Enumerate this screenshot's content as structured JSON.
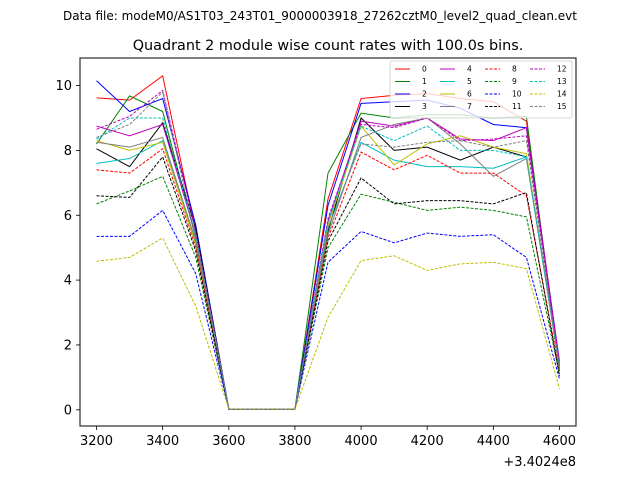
{
  "header": "Data file: modeM0/AS1T03_243T01_9000003918_27262cztM0_level2_quad_clean.evt",
  "chart_data": {
    "type": "line",
    "title": "Quadrant 2 module wise count rates with 100.0s bins.",
    "xlabel": "",
    "ylabel": "",
    "x_offset_label": "+3.4024e8",
    "x": [
      3200,
      3300,
      3400,
      3500,
      3600,
      3700,
      3800,
      3900,
      4000,
      4100,
      4200,
      4300,
      4400,
      4500,
      4600
    ],
    "xlim": [
      3150,
      4650
    ],
    "ylim": [
      -0.5,
      10.85
    ],
    "xticks": [
      3200,
      3400,
      3600,
      3800,
      4000,
      4200,
      4400,
      4600
    ],
    "xtick_labels": [
      "3200",
      "3400",
      "3600",
      "3800",
      "4000",
      "4200",
      "4400",
      "4600"
    ],
    "yticks": [
      0,
      2,
      4,
      6,
      8,
      10
    ],
    "ytick_labels": [
      "0",
      "2",
      "4",
      "6",
      "8",
      "10"
    ],
    "grid": false,
    "legend_position": "top-right",
    "series": [
      {
        "name": "0",
        "color": "#ff0000",
        "dash": "solid",
        "values": [
          9.62,
          9.55,
          10.3,
          5.5,
          0.02,
          0.02,
          0.02,
          6.5,
          9.6,
          9.7,
          9.75,
          9.6,
          9.5,
          8.9,
          1.4
        ]
      },
      {
        "name": "1",
        "color": "#008000",
        "dash": "solid",
        "values": [
          8.2,
          9.68,
          9.2,
          5.3,
          0.02,
          0.02,
          0.02,
          7.3,
          9.15,
          9.0,
          9.1,
          9.1,
          9.0,
          9.05,
          1.2
        ]
      },
      {
        "name": "2",
        "color": "#0000ff",
        "dash": "solid",
        "values": [
          10.15,
          9.2,
          9.6,
          5.7,
          0.02,
          0.02,
          0.02,
          6.3,
          9.45,
          9.5,
          9.55,
          9.3,
          8.8,
          8.7,
          1.5
        ]
      },
      {
        "name": "3",
        "color": "#000000",
        "dash": "solid",
        "values": [
          8.05,
          7.5,
          8.85,
          5.6,
          0.02,
          0.02,
          0.02,
          5.5,
          9.0,
          8.0,
          8.1,
          7.7,
          8.1,
          7.8,
          1.3
        ]
      },
      {
        "name": "4",
        "color": "#bf00bf",
        "dash": "solid",
        "values": [
          8.75,
          8.45,
          8.8,
          5.4,
          0.02,
          0.02,
          0.02,
          5.8,
          8.9,
          8.75,
          9.0,
          8.35,
          8.3,
          8.7,
          1.45
        ]
      },
      {
        "name": "5",
        "color": "#00bfbf",
        "dash": "solid",
        "values": [
          7.6,
          7.75,
          8.3,
          5.2,
          0.02,
          0.02,
          0.02,
          5.6,
          8.25,
          7.7,
          7.5,
          7.5,
          7.45,
          7.8,
          1.35
        ]
      },
      {
        "name": "6",
        "color": "#bfbf00",
        "dash": "solid",
        "values": [
          8.3,
          8.0,
          8.25,
          5.1,
          0.02,
          0.02,
          0.02,
          5.7,
          8.75,
          7.55,
          8.2,
          8.45,
          8.1,
          7.9,
          1.3
        ]
      },
      {
        "name": "7",
        "color": "#808080",
        "dash": "solid",
        "values": [
          8.25,
          8.1,
          8.4,
          5.2,
          0.02,
          0.02,
          0.02,
          5.4,
          8.4,
          8.8,
          9.0,
          8.2,
          7.2,
          7.75,
          1.4
        ]
      },
      {
        "name": "8",
        "color": "#ff0000",
        "dash": "dashed",
        "values": [
          7.4,
          7.3,
          8.05,
          5.0,
          0.02,
          0.02,
          0.02,
          5.3,
          7.95,
          7.4,
          7.85,
          7.3,
          7.3,
          6.6,
          1.2
        ]
      },
      {
        "name": "9",
        "color": "#008000",
        "dash": "dashed",
        "values": [
          6.35,
          6.75,
          7.2,
          4.7,
          0.02,
          0.02,
          0.02,
          5.0,
          6.65,
          6.4,
          6.15,
          6.25,
          6.15,
          5.95,
          1.1
        ]
      },
      {
        "name": "10",
        "color": "#0000ff",
        "dash": "dashed",
        "values": [
          5.35,
          5.35,
          6.15,
          4.2,
          0.02,
          0.02,
          0.02,
          4.55,
          5.5,
          5.15,
          5.45,
          5.35,
          5.4,
          4.7,
          0.95
        ]
      },
      {
        "name": "11",
        "color": "#000000",
        "dash": "dashed",
        "values": [
          6.6,
          6.55,
          7.8,
          4.9,
          0.02,
          0.02,
          0.02,
          5.2,
          7.15,
          6.35,
          6.45,
          6.45,
          6.35,
          6.7,
          1.05
        ]
      },
      {
        "name": "12",
        "color": "#bf00bf",
        "dash": "dashed",
        "values": [
          8.65,
          9.05,
          9.85,
          5.5,
          0.02,
          0.02,
          0.02,
          5.9,
          8.8,
          8.7,
          9.0,
          8.3,
          8.35,
          8.45,
          1.35
        ]
      },
      {
        "name": "13",
        "color": "#00bfbf",
        "dash": "dashed",
        "values": [
          8.35,
          9.0,
          9.0,
          5.4,
          0.02,
          0.02,
          0.02,
          5.8,
          8.75,
          8.3,
          8.75,
          8.0,
          8.0,
          7.8,
          1.3
        ]
      },
      {
        "name": "14",
        "color": "#bfbf00",
        "dash": "dashed",
        "values": [
          4.58,
          4.7,
          5.3,
          3.2,
          0.02,
          0.02,
          0.02,
          2.85,
          4.6,
          4.75,
          4.3,
          4.5,
          4.55,
          4.35,
          0.65
        ]
      },
      {
        "name": "15",
        "color": "#808080",
        "dash": "dashed",
        "values": [
          8.4,
          8.8,
          9.8,
          5.3,
          0.02,
          0.02,
          0.02,
          5.6,
          8.2,
          8.1,
          8.25,
          8.3,
          8.1,
          8.3,
          1.25
        ]
      }
    ]
  }
}
